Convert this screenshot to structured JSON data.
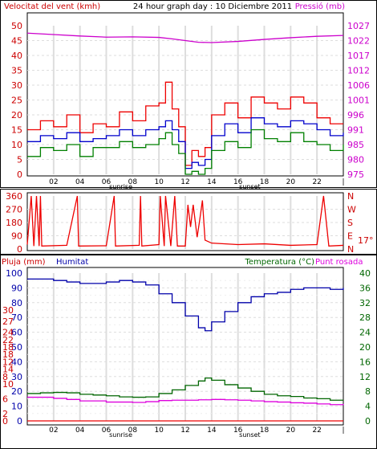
{
  "header": {
    "title": "24 hour graph day : 10 Diciembre 2011",
    "left_label": "Velocitat del vent (kmh)",
    "right_label": "Pressió (mb)"
  },
  "colors": {
    "wind_peak": "#ee0000",
    "wind_avg": "#0000cc",
    "wind_min": "#008000",
    "pressure": "#cc00cc",
    "direction": "#ee0000",
    "humidity": "#0000aa",
    "rain": "#ee0000",
    "temperature": "#006600",
    "dewpoint": "#dd00dd",
    "grid": "#dddddd",
    "frame": "#000000"
  },
  "chart_data": [
    {
      "type": "line",
      "name": "wind-pressure",
      "x_ticks": [
        "02",
        "04",
        "06",
        "08",
        "10",
        "12",
        "14",
        "16",
        "18",
        "20",
        "22"
      ],
      "sunrise_label": "sunrise",
      "sunset_label": "sunset",
      "left_axis": {
        "label": "Velocitat del vent (kmh)",
        "ticks": [
          0,
          5,
          10,
          15,
          20,
          25,
          30,
          35,
          40,
          45,
          50
        ],
        "range": [
          0,
          50
        ]
      },
      "right_axis": {
        "label": "Pressió (mb)",
        "ticks": [
          975,
          980,
          985,
          991,
          996,
          1001,
          1006,
          1012,
          1017,
          1022,
          1027
        ],
        "range": [
          975,
          1027
        ]
      },
      "series": [
        {
          "key": "wind_peak",
          "axis": "left",
          "points": [
            [
              0,
              15
            ],
            [
              1,
              18
            ],
            [
              2,
              16
            ],
            [
              3,
              20
            ],
            [
              4,
              14
            ],
            [
              5,
              17
            ],
            [
              6,
              16
            ],
            [
              7,
              21
            ],
            [
              8,
              18
            ],
            [
              9,
              23
            ],
            [
              10,
              24
            ],
            [
              10.5,
              31
            ],
            [
              11,
              22
            ],
            [
              11.5,
              16
            ],
            [
              12,
              3
            ],
            [
              12.5,
              8
            ],
            [
              13,
              6
            ],
            [
              13.5,
              9
            ],
            [
              14,
              20
            ],
            [
              15,
              24
            ],
            [
              16,
              19
            ],
            [
              17,
              26
            ],
            [
              18,
              24
            ],
            [
              19,
              22
            ],
            [
              20,
              26
            ],
            [
              21,
              24
            ],
            [
              22,
              19
            ],
            [
              23,
              17
            ],
            [
              24,
              17
            ]
          ]
        },
        {
          "key": "wind_avg",
          "axis": "left",
          "points": [
            [
              0,
              11
            ],
            [
              1,
              13
            ],
            [
              2,
              12
            ],
            [
              3,
              14
            ],
            [
              4,
              11
            ],
            [
              5,
              12
            ],
            [
              6,
              13
            ],
            [
              7,
              15
            ],
            [
              8,
              13
            ],
            [
              9,
              15
            ],
            [
              10,
              16
            ],
            [
              10.5,
              18
            ],
            [
              11,
              15
            ],
            [
              11.5,
              11
            ],
            [
              12,
              2
            ],
            [
              12.5,
              4
            ],
            [
              13,
              3
            ],
            [
              13.5,
              5
            ],
            [
              14,
              13
            ],
            [
              15,
              17
            ],
            [
              16,
              14
            ],
            [
              17,
              19
            ],
            [
              18,
              17
            ],
            [
              19,
              16
            ],
            [
              20,
              18
            ],
            [
              21,
              17
            ],
            [
              22,
              15
            ],
            [
              23,
              13
            ],
            [
              24,
              14
            ]
          ]
        },
        {
          "key": "wind_min",
          "axis": "left",
          "points": [
            [
              0,
              6
            ],
            [
              1,
              9
            ],
            [
              2,
              8
            ],
            [
              3,
              10
            ],
            [
              4,
              6
            ],
            [
              5,
              9
            ],
            [
              6,
              9
            ],
            [
              7,
              11
            ],
            [
              8,
              9
            ],
            [
              9,
              10
            ],
            [
              10,
              12
            ],
            [
              10.5,
              14
            ],
            [
              11,
              10
            ],
            [
              11.5,
              7
            ],
            [
              12,
              0
            ],
            [
              12.5,
              1
            ],
            [
              13,
              0
            ],
            [
              13.5,
              2
            ],
            [
              14,
              8
            ],
            [
              15,
              11
            ],
            [
              16,
              9
            ],
            [
              17,
              15
            ],
            [
              18,
              12
            ],
            [
              19,
              11
            ],
            [
              20,
              14
            ],
            [
              21,
              11
            ],
            [
              22,
              10
            ],
            [
              23,
              8
            ],
            [
              24,
              10
            ]
          ]
        },
        {
          "key": "pressure",
          "axis": "right",
          "points": [
            [
              0,
              1024.4
            ],
            [
              2,
              1023.9
            ],
            [
              4,
              1023.4
            ],
            [
              6,
              1023
            ],
            [
              8,
              1023.1
            ],
            [
              10,
              1022.9
            ],
            [
              11,
              1022.4
            ],
            [
              12,
              1021.8
            ],
            [
              13,
              1021.2
            ],
            [
              14,
              1021.1
            ],
            [
              16,
              1021.5
            ],
            [
              18,
              1022.2
            ],
            [
              20,
              1022.8
            ],
            [
              22,
              1023.3
            ],
            [
              24,
              1023.6
            ]
          ]
        }
      ]
    },
    {
      "type": "line",
      "name": "wind-direction",
      "left_axis": {
        "ticks": [
          0,
          90,
          180,
          270,
          360
        ],
        "range": [
          0,
          360
        ]
      },
      "compass_labels": [
        "N",
        "W",
        "S",
        "E",
        "N"
      ],
      "temperature_readout": "17°",
      "series": [
        {
          "key": "direction",
          "points": [
            [
              0,
              30
            ],
            [
              0.3,
              360
            ],
            [
              0.5,
              20
            ],
            [
              0.7,
              360
            ],
            [
              0.9,
              20
            ],
            [
              1.0,
              360
            ],
            [
              1.1,
              20
            ],
            [
              3,
              25
            ],
            [
              3.8,
              360
            ],
            [
              3.9,
              20
            ],
            [
              6,
              22
            ],
            [
              6.6,
              360
            ],
            [
              6.7,
              20
            ],
            [
              8.5,
              25
            ],
            [
              8.6,
              360
            ],
            [
              8.7,
              20
            ],
            [
              10,
              30
            ],
            [
              10.1,
              360
            ],
            [
              10.4,
              20
            ],
            [
              10.5,
              360
            ],
            [
              10.9,
              20
            ],
            [
              11.2,
              360
            ],
            [
              11.4,
              20
            ],
            [
              12,
              20
            ],
            [
              12.2,
              300
            ],
            [
              12.4,
              150
            ],
            [
              12.6,
              300
            ],
            [
              12.9,
              80
            ],
            [
              13.1,
              200
            ],
            [
              13.3,
              330
            ],
            [
              13.5,
              60
            ],
            [
              14,
              40
            ],
            [
              16,
              30
            ],
            [
              18,
              35
            ],
            [
              20,
              25
            ],
            [
              22,
              30
            ],
            [
              22.5,
              360
            ],
            [
              22.9,
              20
            ],
            [
              24,
              25
            ]
          ]
        }
      ]
    },
    {
      "type": "line",
      "name": "rain-humidity-temperature",
      "labels": {
        "rain": "Pluja (mm)",
        "humidity": "Humitat",
        "temperature": "Temperatura (°C)",
        "dewpoint": "Punt rosada"
      },
      "rain_axis": {
        "ticks": [
          0,
          2,
          4,
          6,
          8,
          10,
          12,
          14,
          16,
          18,
          20,
          22,
          24,
          27,
          30
        ],
        "range": [
          0,
          30
        ]
      },
      "humidity_axis": {
        "ticks": [
          0,
          10,
          20,
          30,
          40,
          50,
          60,
          70,
          80,
          90,
          100
        ],
        "range": [
          0,
          100
        ]
      },
      "temperature_axis": {
        "ticks": [
          0,
          2,
          4,
          6,
          8,
          10,
          12,
          14,
          16,
          18,
          20,
          22,
          24,
          26,
          28,
          30,
          32,
          34,
          36,
          38,
          40
        ],
        "range": [
          0,
          40
        ]
      },
      "x_ticks": [
        "02",
        "04",
        "06",
        "08",
        "10",
        "12",
        "14",
        "16",
        "18",
        "20",
        "22"
      ],
      "sunrise_label": "sunrise",
      "sunset_label": "sunset",
      "series": [
        {
          "key": "humidity",
          "axis": "humidity",
          "points": [
            [
              0,
              96
            ],
            [
              1,
              96
            ],
            [
              2,
              95
            ],
            [
              3,
              94
            ],
            [
              4,
              93
            ],
            [
              5,
              93
            ],
            [
              6,
              94
            ],
            [
              7,
              95
            ],
            [
              8,
              94
            ],
            [
              9,
              92
            ],
            [
              10,
              86
            ],
            [
              11,
              80
            ],
            [
              12,
              71
            ],
            [
              13,
              63
            ],
            [
              13.5,
              61
            ],
            [
              14,
              67
            ],
            [
              15,
              74
            ],
            [
              16,
              80
            ],
            [
              17,
              84
            ],
            [
              18,
              86
            ],
            [
              19,
              87
            ],
            [
              20,
              89
            ],
            [
              21,
              90
            ],
            [
              22,
              90
            ],
            [
              23,
              89
            ],
            [
              24,
              90
            ]
          ]
        },
        {
          "key": "temperature",
          "axis": "temperature",
          "points": [
            [
              0,
              7.4
            ],
            [
              1,
              7.6
            ],
            [
              2,
              7.7
            ],
            [
              3,
              7.6
            ],
            [
              4,
              7.2
            ],
            [
              5,
              7
            ],
            [
              6,
              6.8
            ],
            [
              7,
              6.5
            ],
            [
              8,
              6.4
            ],
            [
              9,
              6.5
            ],
            [
              10,
              7.4
            ],
            [
              11,
              8.4
            ],
            [
              12,
              9.6
            ],
            [
              13,
              10.8
            ],
            [
              13.5,
              11.6
            ],
            [
              14,
              11
            ],
            [
              15,
              9.8
            ],
            [
              16,
              8.9
            ],
            [
              17,
              8
            ],
            [
              18,
              7.2
            ],
            [
              19,
              6.8
            ],
            [
              20,
              6.6
            ],
            [
              21,
              6.2
            ],
            [
              22,
              6
            ],
            [
              23,
              5.6
            ],
            [
              24,
              5.6
            ]
          ]
        },
        {
          "key": "dewpoint",
          "axis": "temperature",
          "points": [
            [
              0,
              6.4
            ],
            [
              2,
              6.1
            ],
            [
              3,
              5.8
            ],
            [
              4,
              5.4
            ],
            [
              6,
              5.1
            ],
            [
              8,
              5
            ],
            [
              9,
              5.2
            ],
            [
              10,
              5.5
            ],
            [
              11,
              5.6
            ],
            [
              12,
              5.6
            ],
            [
              13,
              5.7
            ],
            [
              14,
              5.8
            ],
            [
              15,
              5.7
            ],
            [
              16,
              5.6
            ],
            [
              17,
              5.4
            ],
            [
              18,
              5.2
            ],
            [
              19,
              5.1
            ],
            [
              20,
              4.9
            ],
            [
              21,
              4.8
            ],
            [
              22,
              4.6
            ],
            [
              23,
              4.4
            ],
            [
              24,
              4.6
            ]
          ]
        },
        {
          "key": "rain",
          "axis": "rain",
          "points": [
            [
              0,
              0
            ],
            [
              24,
              0
            ]
          ]
        }
      ]
    }
  ]
}
